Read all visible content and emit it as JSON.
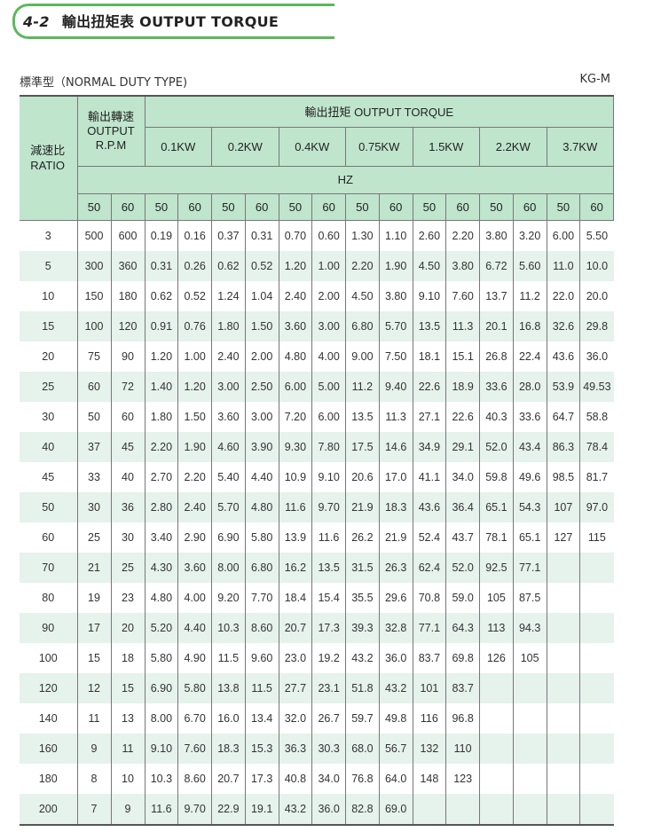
{
  "header": {
    "section_number": "4-2",
    "title": "輸出扭矩表 OUTPUT TORQUE"
  },
  "subtitle": "標準型（NORMAL DUTY TYPE)",
  "model": "KG-M",
  "colors": {
    "header_bg": "#bfe5cd",
    "alt_row_bg": "#e6f2ec",
    "banner_border": "#5cb85c"
  },
  "table": {
    "ratio_header": "減速比 RATIO",
    "rpm_header": "輸出轉速 OUTPUT R.P.M",
    "torque_header": "輸出扭矩 OUTPUT TORQUE",
    "hz_header": "HZ",
    "power": [
      "0.1KW",
      "0.2KW",
      "0.4KW",
      "0.75KW",
      "1.5KW",
      "2.2KW",
      "3.7KW"
    ],
    "hz": [
      "50",
      "60",
      "50",
      "60",
      "50",
      "60",
      "50",
      "60",
      "50",
      "60",
      "50",
      "60",
      "50",
      "60",
      "50",
      "60"
    ],
    "rows": [
      [
        "3",
        "500",
        "600",
        "0.19",
        "0.16",
        "0.37",
        "0.31",
        "0.70",
        "0.60",
        "1.30",
        "1.10",
        "2.60",
        "2.20",
        "3.80",
        "3.20",
        "6.00",
        "5.50"
      ],
      [
        "5",
        "300",
        "360",
        "0.31",
        "0.26",
        "0.62",
        "0.52",
        "1.20",
        "1.00",
        "2.20",
        "1.90",
        "4.50",
        "3.80",
        "6.72",
        "5.60",
        "11.0",
        "10.0"
      ],
      [
        "10",
        "150",
        "180",
        "0.62",
        "0.52",
        "1.24",
        "1.04",
        "2.40",
        "2.00",
        "4.50",
        "3.80",
        "9.10",
        "7.60",
        "13.7",
        "11.2",
        "22.0",
        "20.0"
      ],
      [
        "15",
        "100",
        "120",
        "0.91",
        "0.76",
        "1.80",
        "1.50",
        "3.60",
        "3.00",
        "6.80",
        "5.70",
        "13.5",
        "11.3",
        "20.1",
        "16.8",
        "32.6",
        "29.8"
      ],
      [
        "20",
        "75",
        "90",
        "1.20",
        "1.00",
        "2.40",
        "2.00",
        "4.80",
        "4.00",
        "9.00",
        "7.50",
        "18.1",
        "15.1",
        "26.8",
        "22.4",
        "43.6",
        "36.0"
      ],
      [
        "25",
        "60",
        "72",
        "1.40",
        "1.20",
        "3.00",
        "2.50",
        "6.00",
        "5.00",
        "11.2",
        "9.40",
        "22.6",
        "18.9",
        "33.6",
        "28.0",
        "53.9",
        "49.53"
      ],
      [
        "30",
        "50",
        "60",
        "1.80",
        "1.50",
        "3.60",
        "3.00",
        "7.20",
        "6.00",
        "13.5",
        "11.3",
        "27.1",
        "22.6",
        "40.3",
        "33.6",
        "64.7",
        "58.8"
      ],
      [
        "40",
        "37",
        "45",
        "2.20",
        "1.90",
        "4.60",
        "3.90",
        "9.30",
        "7.80",
        "17.5",
        "14.6",
        "34.9",
        "29.1",
        "52.0",
        "43.4",
        "86.3",
        "78.4"
      ],
      [
        "45",
        "33",
        "40",
        "2.70",
        "2.20",
        "5.40",
        "4.40",
        "10.9",
        "9.10",
        "20.6",
        "17.0",
        "41.1",
        "34.0",
        "59.8",
        "49.6",
        "98.5",
        "81.7"
      ],
      [
        "50",
        "30",
        "36",
        "2.80",
        "2.40",
        "5.70",
        "4.80",
        "11.6",
        "9.70",
        "21.9",
        "18.3",
        "43.6",
        "36.4",
        "65.1",
        "54.3",
        "107",
        "97.0"
      ],
      [
        "60",
        "25",
        "30",
        "3.40",
        "2.90",
        "6.90",
        "5.80",
        "13.9",
        "11.6",
        "26.2",
        "21.9",
        "52.4",
        "43.7",
        "78.1",
        "65.1",
        "127",
        "115"
      ],
      [
        "70",
        "21",
        "25",
        "4.30",
        "3.60",
        "8.00",
        "6.80",
        "16.2",
        "13.5",
        "31.5",
        "26.3",
        "62.4",
        "52.0",
        "92.5",
        "77.1",
        "",
        ""
      ],
      [
        "80",
        "19",
        "23",
        "4.80",
        "4.00",
        "9.20",
        "7.70",
        "18.4",
        "15.4",
        "35.5",
        "29.6",
        "70.8",
        "59.0",
        "105",
        "87.5",
        "",
        ""
      ],
      [
        "90",
        "17",
        "20",
        "5.20",
        "4.40",
        "10.3",
        "8.60",
        "20.7",
        "17.3",
        "39.3",
        "32.8",
        "77.1",
        "64.3",
        "113",
        "94.3",
        "",
        ""
      ],
      [
        "100",
        "15",
        "18",
        "5.80",
        "4.90",
        "11.5",
        "9.60",
        "23.0",
        "19.2",
        "43.2",
        "36.0",
        "83.7",
        "69.8",
        "126",
        "105",
        "",
        ""
      ],
      [
        "120",
        "12",
        "15",
        "6.90",
        "5.80",
        "13.8",
        "11.5",
        "27.7",
        "23.1",
        "51.8",
        "43.2",
        "101",
        "83.7",
        "",
        "",
        "",
        ""
      ],
      [
        "140",
        "11",
        "13",
        "8.00",
        "6.70",
        "16.0",
        "13.4",
        "32.0",
        "26.7",
        "59.7",
        "49.8",
        "116",
        "96.8",
        "",
        "",
        "",
        ""
      ],
      [
        "160",
        "9",
        "11",
        "9.10",
        "7.60",
        "18.3",
        "15.3",
        "36.3",
        "30.3",
        "68.0",
        "56.7",
        "132",
        "110",
        "",
        "",
        "",
        ""
      ],
      [
        "180",
        "8",
        "10",
        "10.3",
        "8.60",
        "20.7",
        "17.3",
        "40.8",
        "34.0",
        "76.8",
        "64.0",
        "148",
        "123",
        "",
        "",
        "",
        ""
      ],
      [
        "200",
        "7",
        "9",
        "11.6",
        "9.70",
        "22.9",
        "19.1",
        "43.2",
        "36.0",
        "82.8",
        "69.0",
        "",
        "",
        "",
        "",
        "",
        ""
      ]
    ]
  }
}
